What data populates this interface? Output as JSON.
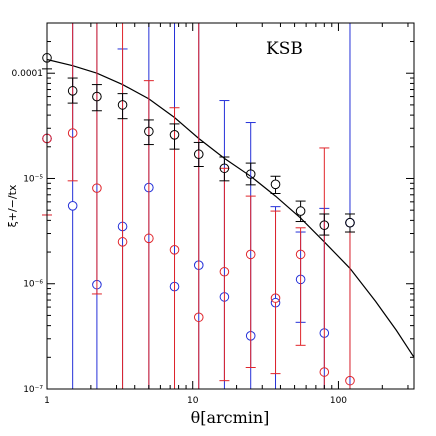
{
  "chart_data": {
    "type": "scatter",
    "title": "",
    "annotation": "KSB",
    "xlabel": "θ[arcmin]",
    "ylabel": "ξ+/−/tx",
    "x_scale": "log",
    "y_scale": "log",
    "xlim": [
      1,
      330
    ],
    "ylim": [
      1e-07,
      0.0003
    ],
    "x_ticks": [
      {
        "value": 1,
        "label": "1"
      },
      {
        "value": 10,
        "label": "10"
      },
      {
        "value": 100,
        "label": "100"
      }
    ],
    "y_ticks": [
      {
        "value": 1e-07,
        "label": "10⁻⁷"
      },
      {
        "value": 1e-06,
        "label": "10⁻⁶"
      },
      {
        "value": 1e-05,
        "label": "10⁻⁵"
      },
      {
        "value": 0.0001,
        "label": "0.0001"
      }
    ],
    "grid": false,
    "legend": "none",
    "model_curve": {
      "color": "#000000",
      "points": [
        [
          1,
          0.000135
        ],
        [
          1.5,
          0.000118
        ],
        [
          2.2,
          0.0001
        ],
        [
          3.3,
          7.8e-05
        ],
        [
          5,
          5.7e-05
        ],
        [
          7.5,
          3.8e-05
        ],
        [
          11,
          2.4e-05
        ],
        [
          16.5,
          1.55e-05
        ],
        [
          25,
          1.05e-05
        ],
        [
          37,
          6.8e-06
        ],
        [
          55,
          4.2e-06
        ],
        [
          80,
          2.5e-06
        ],
        [
          120,
          1.4e-06
        ],
        [
          180,
          6.8e-07
        ],
        [
          250,
          3.6e-07
        ],
        [
          330,
          2e-07
        ]
      ]
    },
    "series": [
      {
        "name": "ξ+",
        "color": "#000000",
        "points": [
          {
            "x": 1,
            "y": 0.00014,
            "lo": 0.00011,
            "hi": 0.0003
          },
          {
            "x": 1.5,
            "y": 6.8e-05,
            "lo": 5.2e-05,
            "hi": 9e-05
          },
          {
            "x": 2.2,
            "y": 6e-05,
            "lo": 4.4e-05,
            "hi": 7.8e-05
          },
          {
            "x": 3.3,
            "y": 5e-05,
            "lo": 3.7e-05,
            "hi": 6.4e-05
          },
          {
            "x": 5,
            "y": 2.8e-05,
            "lo": 2.1e-05,
            "hi": 3.6e-05
          },
          {
            "x": 7.5,
            "y": 2.6e-05,
            "lo": 1.9e-05,
            "hi": 3.3e-05
          },
          {
            "x": 11,
            "y": 1.7e-05,
            "lo": 1.3e-05,
            "hi": 2.2e-05
          },
          {
            "x": 16.5,
            "y": 1.25e-05,
            "lo": 9.5e-06,
            "hi": 1.6e-05
          },
          {
            "x": 25,
            "y": 1.1e-05,
            "lo": 8.7e-06,
            "hi": 1.4e-05
          },
          {
            "x": 37,
            "y": 8.8e-06,
            "lo": 7.2e-06,
            "hi": 1.05e-05
          },
          {
            "x": 55,
            "y": 4.9e-06,
            "lo": 3.9e-06,
            "hi": 6.1e-06
          },
          {
            "x": 80,
            "y": 3.6e-06,
            "lo": 2.9e-06,
            "hi": 4.6e-06
          },
          {
            "x": 120,
            "y": 3.8e-06,
            "lo": 3.1e-06,
            "hi": 4.6e-06
          }
        ]
      },
      {
        "name": "ξ−",
        "color": "#e0242a",
        "points": [
          {
            "x": 1,
            "y": 2.4e-05,
            "lo": 4.5e-06,
            "hi": 0.0003
          },
          {
            "x": 1.5,
            "y": 2.7e-05,
            "lo": 9.5e-06,
            "hi": 0.0003
          },
          {
            "x": 2.2,
            "y": 8.1e-06,
            "lo": 8e-07,
            "hi": 0.0003
          },
          {
            "x": 3.3,
            "y": 2.5e-06,
            "lo": 1e-07,
            "hi": 0.0003
          },
          {
            "x": 5,
            "y": 2.7e-06,
            "lo": 1e-07,
            "hi": 8.5e-05
          },
          {
            "x": 7.5,
            "y": 2.1e-06,
            "lo": 1e-07,
            "hi": 4.7e-05
          },
          {
            "x": 11,
            "y": 4.8e-07,
            "lo": 1e-07,
            "hi": 0.0003
          },
          {
            "x": 16.5,
            "y": 1.3e-06,
            "lo": 1.2e-07,
            "hi": 1.25e-05
          },
          {
            "x": 25,
            "y": 1.9e-06,
            "lo": 1.6e-07,
            "hi": 6.8e-06
          },
          {
            "x": 37,
            "y": 7.3e-07,
            "lo": 1.4e-07,
            "hi": 4.9e-06
          },
          {
            "x": 55,
            "y": 1.9e-06,
            "lo": 2.6e-07,
            "hi": 3.4e-06
          },
          {
            "x": 80,
            "y": 1.45e-07,
            "lo": 1e-07,
            "hi": 1.95e-05
          },
          {
            "x": 120,
            "y": 1.2e-07,
            "lo": 1e-07,
            "hi": 3.1e-06
          }
        ]
      },
      {
        "name": "ξtx",
        "color": "#2430d8",
        "points": [
          {
            "x": 1,
            "y": 2.4e-05,
            "lo": 4.5e-06,
            "hi": 0.0003
          },
          {
            "x": 1.5,
            "y": 5.5e-06,
            "lo": 1e-07,
            "hi": 0.0003
          },
          {
            "x": 2.2,
            "y": 9.8e-07,
            "lo": 1e-07,
            "hi": 0.0003
          },
          {
            "x": 3.3,
            "y": 3.5e-06,
            "lo": 1e-07,
            "hi": 0.00017
          },
          {
            "x": 5,
            "y": 8.2e-06,
            "lo": 1e-07,
            "hi": 0.0003
          },
          {
            "x": 7.5,
            "y": 9.4e-07,
            "lo": 1e-07,
            "hi": 0.0003
          },
          {
            "x": 11,
            "y": 1.5e-06,
            "lo": 1e-07,
            "hi": 0.0003
          },
          {
            "x": 16.5,
            "y": 7.5e-07,
            "lo": 1e-07,
            "hi": 5.5e-05
          },
          {
            "x": 25,
            "y": 3.2e-07,
            "lo": 1e-07,
            "hi": 3.4e-05
          },
          {
            "x": 37,
            "y": 6.6e-07,
            "lo": 1e-07,
            "hi": 5.4e-06
          },
          {
            "x": 55,
            "y": 1.1e-06,
            "lo": 4.3e-07,
            "hi": 3.1e-06
          },
          {
            "x": 80,
            "y": 3.4e-07,
            "lo": 1e-07,
            "hi": 5.2e-06
          },
          {
            "x": 120,
            "y": 3.8e-06,
            "lo": 1e-07,
            "hi": 0.0003
          }
        ]
      }
    ]
  }
}
